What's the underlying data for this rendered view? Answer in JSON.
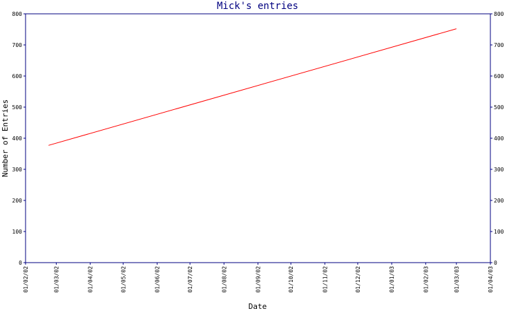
{
  "chart_data": {
    "type": "line",
    "title": "Mick's entries",
    "xlabel": "Date",
    "ylabel": "Number of Entries",
    "ylim": [
      0,
      800
    ],
    "y_ticks": [
      0,
      100,
      200,
      300,
      400,
      500,
      600,
      700,
      800
    ],
    "x_ticks": [
      "01/02/02",
      "01/03/02",
      "01/04/02",
      "01/05/02",
      "01/06/02",
      "01/07/02",
      "01/08/02",
      "01/09/02",
      "01/10/02",
      "01/11/02",
      "01/12/02",
      "01/01/03",
      "01/02/03",
      "01/03/03",
      "01/04/03"
    ],
    "xlim": [
      "2002-02-01",
      "2003-04-01"
    ],
    "y_axis_sides": [
      "left",
      "right"
    ],
    "grid": false,
    "series": [
      {
        "x": [
          "2002-02-22",
          "2003-03-01"
        ],
        "values": [
          377,
          752
        ]
      }
    ],
    "colors": {
      "axis": "#000080",
      "line": "#ff0000",
      "title": "#000080",
      "axis_label": "#000080"
    }
  }
}
